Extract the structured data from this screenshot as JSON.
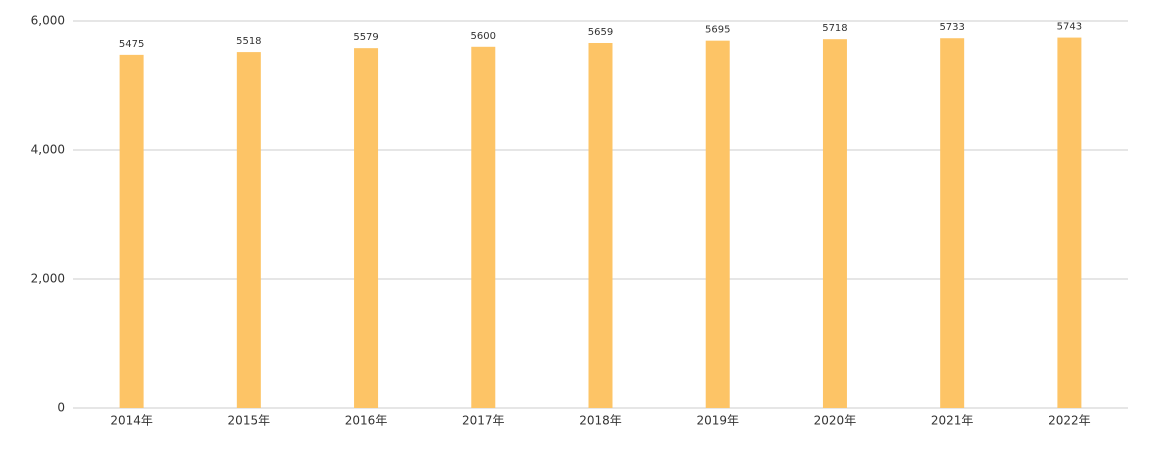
{
  "chart_data": {
    "type": "bar",
    "categories": [
      "2014年",
      "2015年",
      "2016年",
      "2017年",
      "2018年",
      "2019年",
      "2020年",
      "2021年",
      "2022年"
    ],
    "values": [
      5475,
      5518,
      5579,
      5600,
      5659,
      5695,
      5718,
      5733,
      5743
    ],
    "color": "#fdc466",
    "ylim": [
      0,
      6000
    ],
    "yticks": [
      0,
      {
        "value": 2000,
        "label": "2,000"
      },
      {
        "value": 4000,
        "label": "4,000"
      },
      {
        "value": 6000,
        "label": "6,000"
      }
    ],
    "grid": true
  }
}
